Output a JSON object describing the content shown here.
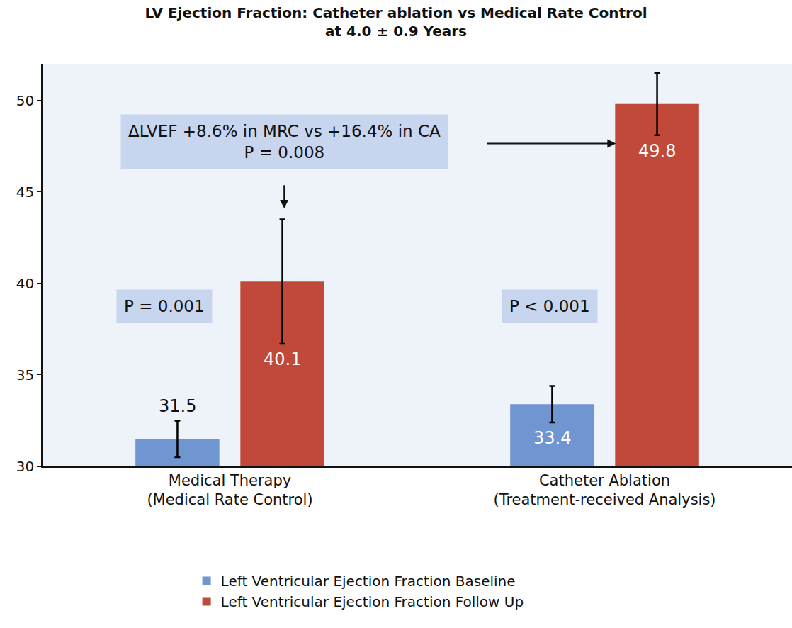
{
  "chart_data": {
    "type": "bar",
    "title": "LV Ejection Fraction: Catheter ablation vs Medical Rate Control\nat 4.0 ± 0.9 Years",
    "categories": [
      "Medical Therapy\n(Medical Rate Control)",
      "Catheter Ablation\n(Treatment-received Analysis)"
    ],
    "series": [
      {
        "name": "Left Ventricular Ejection Fraction Baseline",
        "color": "#7096d2",
        "values": [
          31.5,
          33.4
        ],
        "errors": [
          1.0,
          1.0
        ]
      },
      {
        "name": "Left Ventricular Ejection Fraction Follow Up",
        "color": "#c0493a",
        "values": [
          40.1,
          49.8
        ],
        "errors": [
          3.4,
          1.7
        ]
      }
    ],
    "ylim": [
      30,
      52
    ],
    "yticks": [
      30,
      35,
      40,
      45,
      50
    ],
    "grid": false,
    "legend": "bottom",
    "data_labels": true,
    "annotations": [
      {
        "text": "ΔLVEF +8.6% in MRC vs +16.4% in CA\nP = 0.008"
      },
      {
        "text": "P = 0.001"
      },
      {
        "text": "P < 0.001"
      }
    ]
  }
}
